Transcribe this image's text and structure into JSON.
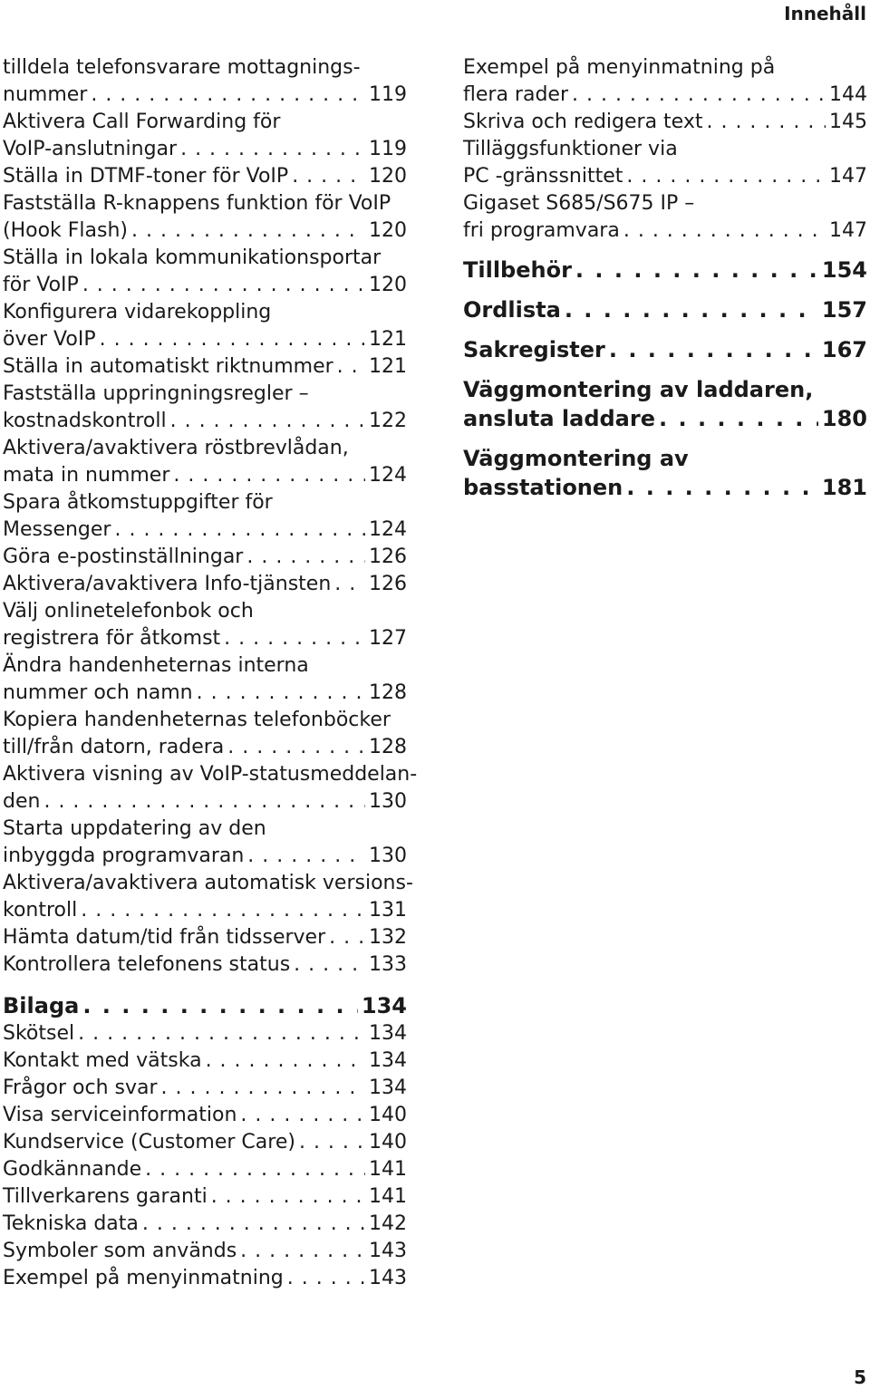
{
  "header": {
    "title": "Innehåll"
  },
  "footer": {
    "page_number": "5"
  },
  "left_column": {
    "entries": [
      {
        "lines": [
          "tilldela telefonsvarare mottagnings-",
          "nummer"
        ],
        "page": "119"
      },
      {
        "lines": [
          "Aktivera Call Forwarding för",
          "VoIP-anslutningar"
        ],
        "page": "119"
      },
      {
        "lines": [
          "Ställa in DTMF-toner för VoIP"
        ],
        "page": "120"
      },
      {
        "lines": [
          "Fastställa R-knappens funktion för VoIP",
          "(Hook Flash)"
        ],
        "page": "120"
      },
      {
        "lines": [
          "Ställa in lokala kommunikationsportar",
          "för VoIP"
        ],
        "page": "120"
      },
      {
        "lines": [
          "Konfigurera vidarekoppling",
          "över VoIP"
        ],
        "page": "121"
      },
      {
        "lines": [
          "Ställa in automatiskt riktnummer"
        ],
        "page": "121"
      },
      {
        "lines": [
          "Fastställa uppringningsregler –",
          "kostnadskontroll"
        ],
        "page": "122"
      },
      {
        "lines": [
          "Aktivera/avaktivera röstbrevlådan,",
          "mata in nummer"
        ],
        "page": "124"
      },
      {
        "lines": [
          "Spara åtkomstuppgifter för",
          "Messenger"
        ],
        "page": "124"
      },
      {
        "lines": [
          "Göra e-postinställningar"
        ],
        "page": "126"
      },
      {
        "lines": [
          "Aktivera/avaktivera Info-tjänsten"
        ],
        "page": "126"
      },
      {
        "lines": [
          "Välj onlinetelefonbok och",
          "registrera för åtkomst"
        ],
        "page": "127"
      },
      {
        "lines": [
          "Ändra handenheternas interna",
          "nummer och namn"
        ],
        "page": "128"
      },
      {
        "lines": [
          "Kopiera handenheternas telefonböcker",
          "till/från datorn, radera"
        ],
        "page": "128"
      },
      {
        "lines": [
          "Aktivera visning av VoIP-statusmeddelan-",
          "den"
        ],
        "page": "130"
      },
      {
        "lines": [
          "Starta uppdatering av den",
          "inbyggda programvaran"
        ],
        "page": "130"
      },
      {
        "lines": [
          "Aktivera/avaktivera automatisk versions-",
          "kontroll"
        ],
        "page": "131"
      },
      {
        "lines": [
          "Hämta datum/tid från tidsserver"
        ],
        "page": "132"
      },
      {
        "lines": [
          "Kontrollera telefonens status"
        ],
        "page": "133"
      }
    ],
    "chapter": {
      "title": "Bilaga",
      "page": "134"
    },
    "chapter_entries": [
      {
        "lines": [
          "Skötsel"
        ],
        "page": "134"
      },
      {
        "lines": [
          "Kontakt med vätska"
        ],
        "page": "134"
      },
      {
        "lines": [
          "Frågor och svar"
        ],
        "page": "134"
      },
      {
        "lines": [
          "Visa serviceinformation"
        ],
        "page": "140"
      },
      {
        "lines": [
          "Kundservice (Customer Care)"
        ],
        "page": "140"
      },
      {
        "lines": [
          "Godkännande"
        ],
        "page": "141"
      },
      {
        "lines": [
          "Tillverkarens garanti"
        ],
        "page": "141"
      },
      {
        "lines": [
          "Tekniska data"
        ],
        "page": "142"
      },
      {
        "lines": [
          "Symboler som används"
        ],
        "page": "143"
      },
      {
        "lines": [
          "Exempel på menyinmatning"
        ],
        "page": "143"
      }
    ]
  },
  "right_column": {
    "entries": [
      {
        "lines": [
          "Exempel på menyinmatning på",
          "flera rader"
        ],
        "page": "144"
      },
      {
        "lines": [
          "Skriva och redigera text"
        ],
        "page": "145"
      },
      {
        "lines": [
          "Tilläggsfunktioner via",
          "PC -gränssnittet"
        ],
        "page": "147"
      },
      {
        "lines": [
          "Gigaset S685/S675 IP –",
          "fri programvara"
        ],
        "page": "147"
      }
    ],
    "chapters": [
      {
        "lines": [
          "Tillbehör"
        ],
        "page": "154"
      },
      {
        "lines": [
          "Ordlista"
        ],
        "page": "157"
      },
      {
        "lines": [
          "Sakregister"
        ],
        "page": "167"
      },
      {
        "lines": [
          "Väggmontering av laddaren,",
          "ansluta laddare"
        ],
        "page": "180"
      },
      {
        "lines": [
          "Väggmontering av",
          "basstationen"
        ],
        "page": "181"
      }
    ]
  }
}
